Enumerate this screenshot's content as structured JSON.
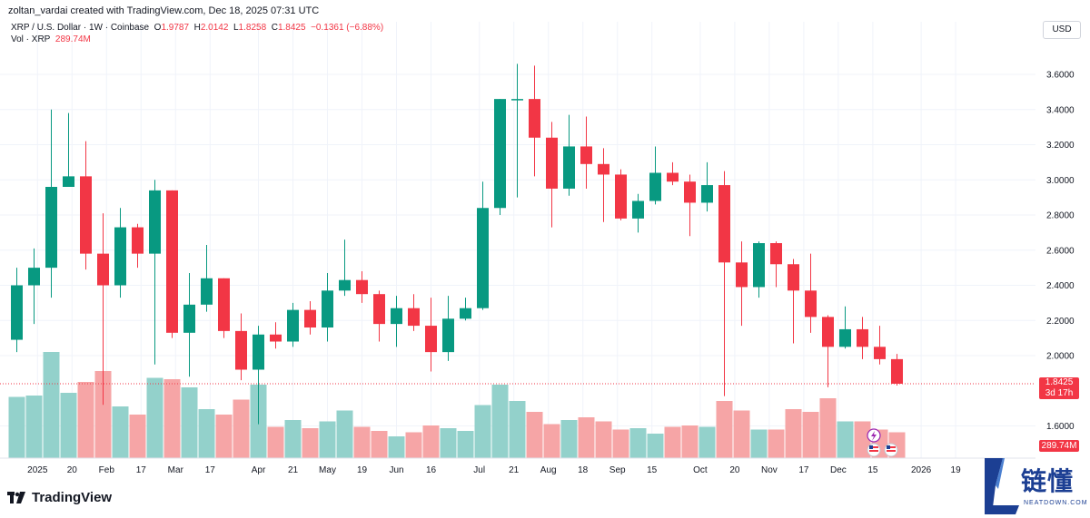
{
  "header": {
    "attribution": "zoltan_vardai created with TradingView.com, Dec 18, 2025 07:31 UTC",
    "symbol": "XRP / U.S. Dollar · 1W · Coinbase",
    "ohlc": {
      "o_label": "O",
      "o": "1.9787",
      "h_label": "H",
      "h": "2.0142",
      "l_label": "L",
      "l": "1.8258",
      "c_label": "C",
      "c": "1.8425",
      "change": "−0.1361 (−6.88%)"
    },
    "vol_label": "Vol · XRP",
    "vol_value": "289.74M",
    "currency": "USD"
  },
  "badges": {
    "last_price": "1.8425",
    "countdown": "3d 17h",
    "last_volume": "289.74M"
  },
  "footer": {
    "tv_brand": "TradingView",
    "watermark_cn": "链懂",
    "watermark_en": "NEATDOWN.COM"
  },
  "colors": {
    "up": "#089981",
    "down": "#f23645",
    "vol_up": "#93d1cb",
    "vol_down": "#f6a5a6",
    "grid": "#f0f3fa"
  },
  "chart_data": {
    "type": "candlestick",
    "interval": "1W",
    "ylim": [
      1.5,
      3.8
    ],
    "y_ticks": [
      "3.6000",
      "3.4000",
      "3.2000",
      "3.0000",
      "2.8000",
      "2.6000",
      "2.4000",
      "2.2000",
      "2.0000",
      "1.6000"
    ],
    "y_tick_values": [
      3.6,
      3.4,
      3.2,
      3.0,
      2.8,
      2.6,
      2.4,
      2.2,
      2.0,
      1.6
    ],
    "x_ticks": [
      {
        "label": "2025",
        "i": 1.2
      },
      {
        "label": "20",
        "i": 3.2
      },
      {
        "label": "Feb",
        "i": 5.2
      },
      {
        "label": "17",
        "i": 7.2
      },
      {
        "label": "Mar",
        "i": 9.2
      },
      {
        "label": "17",
        "i": 11.2
      },
      {
        "label": "Apr",
        "i": 14.0
      },
      {
        "label": "21",
        "i": 16.0
      },
      {
        "label": "May",
        "i": 18.0
      },
      {
        "label": "19",
        "i": 20.0
      },
      {
        "label": "Jun",
        "i": 22.0
      },
      {
        "label": "16",
        "i": 24.0
      },
      {
        "label": "Jul",
        "i": 26.8
      },
      {
        "label": "21",
        "i": 28.8
      },
      {
        "label": "Aug",
        "i": 30.8
      },
      {
        "label": "18",
        "i": 32.8
      },
      {
        "label": "Sep",
        "i": 34.8
      },
      {
        "label": "15",
        "i": 36.8
      },
      {
        "label": "Oct",
        "i": 39.6
      },
      {
        "label": "20",
        "i": 41.6
      },
      {
        "label": "Nov",
        "i": 43.6
      },
      {
        "label": "17",
        "i": 45.6
      },
      {
        "label": "Dec",
        "i": 47.6
      },
      {
        "label": "15",
        "i": 49.6
      },
      {
        "label": "2026",
        "i": 52.4
      },
      {
        "label": "19",
        "i": 54.4
      }
    ],
    "candles": [
      {
        "o": 2.09,
        "h": 2.5,
        "l": 2.02,
        "c": 2.4
      },
      {
        "o": 2.4,
        "h": 2.61,
        "l": 2.18,
        "c": 2.5
      },
      {
        "o": 2.5,
        "h": 3.4,
        "l": 2.33,
        "c": 2.96
      },
      {
        "o": 2.96,
        "h": 3.38,
        "l": 2.96,
        "c": 3.02
      },
      {
        "o": 3.02,
        "h": 3.22,
        "l": 2.49,
        "c": 2.58
      },
      {
        "o": 2.58,
        "h": 2.81,
        "l": 1.72,
        "c": 2.4
      },
      {
        "o": 2.4,
        "h": 2.84,
        "l": 2.33,
        "c": 2.73
      },
      {
        "o": 2.73,
        "h": 2.75,
        "l": 2.5,
        "c": 2.58
      },
      {
        "o": 2.58,
        "h": 3.0,
        "l": 1.95,
        "c": 2.94
      },
      {
        "o": 2.94,
        "h": 2.94,
        "l": 2.1,
        "c": 2.13
      },
      {
        "o": 2.13,
        "h": 2.47,
        "l": 1.88,
        "c": 2.29
      },
      {
        "o": 2.29,
        "h": 2.63,
        "l": 2.25,
        "c": 2.44
      },
      {
        "o": 2.44,
        "h": 2.44,
        "l": 2.1,
        "c": 2.14
      },
      {
        "o": 2.14,
        "h": 2.24,
        "l": 1.86,
        "c": 1.92
      },
      {
        "o": 1.92,
        "h": 2.17,
        "l": 1.61,
        "c": 2.12
      },
      {
        "o": 2.12,
        "h": 2.19,
        "l": 2.04,
        "c": 2.08
      },
      {
        "o": 2.08,
        "h": 2.3,
        "l": 2.05,
        "c": 2.26
      },
      {
        "o": 2.26,
        "h": 2.31,
        "l": 2.12,
        "c": 2.16
      },
      {
        "o": 2.16,
        "h": 2.47,
        "l": 2.08,
        "c": 2.37
      },
      {
        "o": 2.37,
        "h": 2.66,
        "l": 2.34,
        "c": 2.43
      },
      {
        "o": 2.43,
        "h": 2.48,
        "l": 2.3,
        "c": 2.35
      },
      {
        "o": 2.35,
        "h": 2.37,
        "l": 2.08,
        "c": 2.18
      },
      {
        "o": 2.18,
        "h": 2.34,
        "l": 2.05,
        "c": 2.27
      },
      {
        "o": 2.27,
        "h": 2.35,
        "l": 2.14,
        "c": 2.17
      },
      {
        "o": 2.17,
        "h": 2.33,
        "l": 1.91,
        "c": 2.02
      },
      {
        "o": 2.02,
        "h": 2.34,
        "l": 1.97,
        "c": 2.21
      },
      {
        "o": 2.21,
        "h": 2.33,
        "l": 2.2,
        "c": 2.27
      },
      {
        "o": 2.27,
        "h": 2.99,
        "l": 2.26,
        "c": 2.84
      },
      {
        "o": 2.84,
        "h": 3.46,
        "l": 2.8,
        "c": 3.46
      },
      {
        "o": 3.46,
        "h": 3.66,
        "l": 2.9,
        "c": 3.46
      },
      {
        "o": 3.46,
        "h": 3.65,
        "l": 3.02,
        "c": 3.24
      },
      {
        "o": 3.24,
        "h": 3.33,
        "l": 2.73,
        "c": 2.95
      },
      {
        "o": 2.95,
        "h": 3.37,
        "l": 2.91,
        "c": 3.19
      },
      {
        "o": 3.19,
        "h": 3.36,
        "l": 2.95,
        "c": 3.09
      },
      {
        "o": 3.09,
        "h": 3.18,
        "l": 2.76,
        "c": 3.03
      },
      {
        "o": 3.03,
        "h": 3.06,
        "l": 2.77,
        "c": 2.78
      },
      {
        "o": 2.78,
        "h": 2.92,
        "l": 2.7,
        "c": 2.88
      },
      {
        "o": 2.88,
        "h": 3.19,
        "l": 2.86,
        "c": 3.04
      },
      {
        "o": 3.04,
        "h": 3.1,
        "l": 2.97,
        "c": 2.99
      },
      {
        "o": 2.99,
        "h": 3.03,
        "l": 2.68,
        "c": 2.87
      },
      {
        "o": 2.87,
        "h": 3.1,
        "l": 2.82,
        "c": 2.97
      },
      {
        "o": 2.97,
        "h": 3.05,
        "l": 1.77,
        "c": 2.53
      },
      {
        "o": 2.53,
        "h": 2.65,
        "l": 2.17,
        "c": 2.39
      },
      {
        "o": 2.39,
        "h": 2.65,
        "l": 2.33,
        "c": 2.64
      },
      {
        "o": 2.64,
        "h": 2.65,
        "l": 2.39,
        "c": 2.52
      },
      {
        "o": 2.52,
        "h": 2.55,
        "l": 2.07,
        "c": 2.37
      },
      {
        "o": 2.37,
        "h": 2.58,
        "l": 2.13,
        "c": 2.22
      },
      {
        "o": 2.22,
        "h": 2.23,
        "l": 1.82,
        "c": 2.05
      },
      {
        "o": 2.05,
        "h": 2.28,
        "l": 2.04,
        "c": 2.15
      },
      {
        "o": 2.15,
        "h": 2.22,
        "l": 1.98,
        "c": 2.05
      },
      {
        "o": 2.05,
        "h": 2.17,
        "l": 1.95,
        "c": 1.98
      },
      {
        "o": 1.98,
        "h": 2.01,
        "l": 1.83,
        "c": 1.84
      }
    ],
    "volume_ylim": [
      0,
      140
    ],
    "volumes": [
      45,
      46,
      78,
      48,
      56,
      64,
      38,
      32,
      59,
      58,
      52,
      36,
      32,
      43,
      54,
      23,
      28,
      22,
      27,
      35,
      23,
      20,
      16,
      19,
      24,
      22,
      20,
      39,
      54,
      42,
      34,
      25,
      28,
      30,
      27,
      21,
      22,
      18,
      23,
      24,
      23,
      42,
      35,
      21,
      21,
      36,
      34,
      44,
      27,
      27,
      21,
      19
    ]
  }
}
